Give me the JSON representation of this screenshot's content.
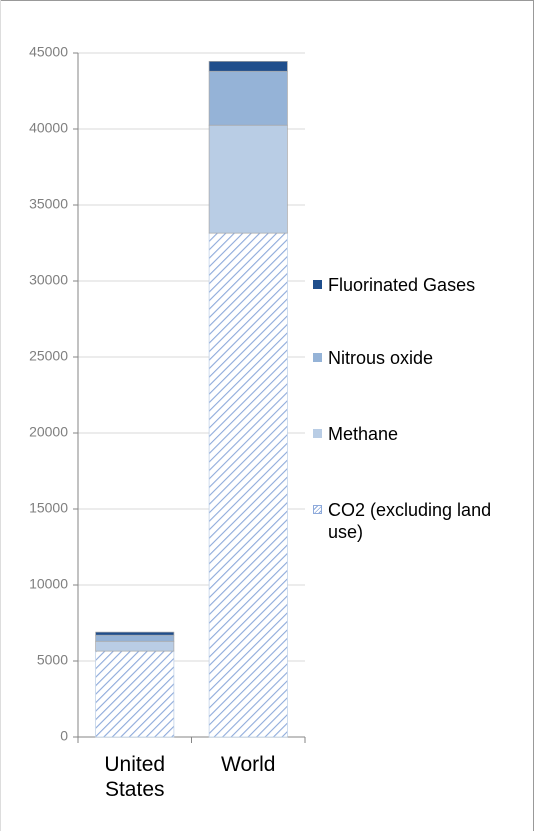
{
  "chart_data": {
    "type": "stacked-bar",
    "categories": [
      "United States",
      "World"
    ],
    "series": [
      {
        "name": "CO2 (excluding land use)",
        "color": "#8eaadb",
        "pattern": "hatch",
        "values": [
          5650,
          33150
        ]
      },
      {
        "name": "Methane",
        "color": "#b9cde5",
        "values": [
          650,
          7100
        ]
      },
      {
        "name": "Nitrous oxide",
        "color": "#95b3d7",
        "values": [
          400,
          3550
        ]
      },
      {
        "name": "Fluorinated Gases",
        "color": "#1f4e8c",
        "values": [
          200,
          650
        ]
      }
    ],
    "ylim": [
      0,
      45000
    ],
    "yticks": [
      0,
      5000,
      10000,
      15000,
      20000,
      25000,
      30000,
      35000,
      40000,
      45000
    ],
    "grid": true
  }
}
